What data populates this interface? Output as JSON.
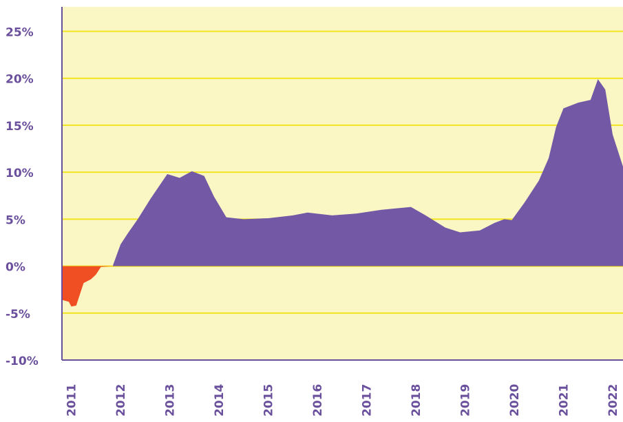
{
  "chart_data": {
    "type": "area",
    "x": [
      2010.81,
      2010.95,
      2011.0,
      2011.1,
      2011.25,
      2011.4,
      2011.5,
      2011.6,
      2011.84,
      2012.0,
      2012.15,
      2012.35,
      2012.6,
      2012.95,
      2013.2,
      2013.45,
      2013.7,
      2013.9,
      2014.15,
      2014.5,
      2015.0,
      2015.5,
      2015.8,
      2016.3,
      2016.8,
      2017.3,
      2017.9,
      2018.2,
      2018.6,
      2018.9,
      2019.3,
      2019.6,
      2019.8,
      2019.95,
      2020.2,
      2020.5,
      2020.7,
      2020.85,
      2021.0,
      2021.3,
      2021.55,
      2021.7,
      2021.85,
      2022.0,
      2022.21
    ],
    "values": [
      -3.6,
      -3.8,
      -4.3,
      -4.2,
      -1.8,
      -1.4,
      -0.9,
      -0.1,
      0,
      2.3,
      3.5,
      5.0,
      7.1,
      9.8,
      9.4,
      10.1,
      9.6,
      7.4,
      5.2,
      5.0,
      5.1,
      5.4,
      5.7,
      5.4,
      5.6,
      6.0,
      6.3,
      5.4,
      4.1,
      3.6,
      3.8,
      4.6,
      5.0,
      4.9,
      6.7,
      9.1,
      11.5,
      14.8,
      16.8,
      17.4,
      17.7,
      19.9,
      18.8,
      14.0,
      10.6
    ],
    "color": "#7358a5",
    "negative_color": "#f04e23",
    "xlim": [
      2010.81,
      2022.21
    ],
    "xticks": [
      2011,
      2012,
      2013,
      2014,
      2015,
      2016,
      2017,
      2018,
      2019,
      2020,
      2021,
      2022
    ],
    "ylim": [
      -10,
      27.6
    ],
    "yticks": [
      {
        "value": -10,
        "label": "-10%"
      },
      {
        "value": -5,
        "label": "-5%"
      },
      {
        "value": 0,
        "label": "0%"
      },
      {
        "value": 5,
        "label": "5%"
      },
      {
        "value": 10,
        "label": "10%"
      },
      {
        "value": 15,
        "label": "15%"
      },
      {
        "value": 20,
        "label": "20%"
      },
      {
        "value": 25,
        "label": "25%"
      }
    ],
    "grid": true
  }
}
